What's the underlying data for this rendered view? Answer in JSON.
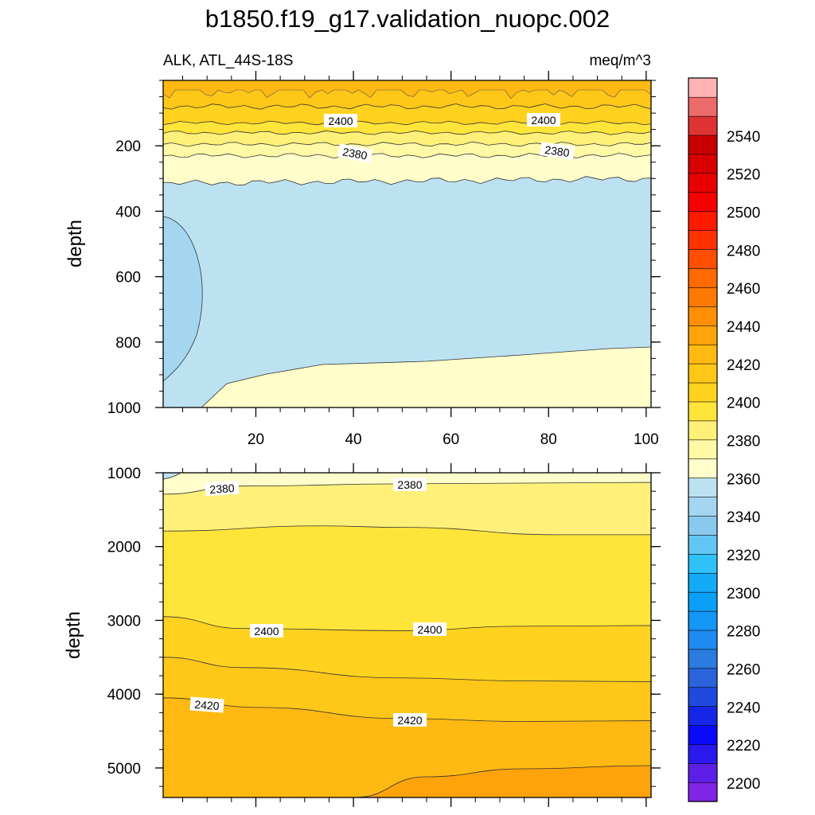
{
  "chart_data": {
    "type": "contour",
    "title": "b1850.f19_g17.validation_nuopc.002",
    "subtitle_left": "ALK, ATL_44S-18S",
    "subtitle_right": "meq/m^3",
    "x_ticks": [
      "20",
      "40",
      "60",
      "80",
      "100"
    ],
    "x_range": [
      1,
      101
    ],
    "colorbar": {
      "labels": [
        "2200",
        "2220",
        "2240",
        "2260",
        "2280",
        "2300",
        "2320",
        "2340",
        "2360",
        "2380",
        "2400",
        "2420",
        "2440",
        "2460",
        "2480",
        "2500",
        "2520",
        "2540"
      ],
      "colors": [
        "#8025e6",
        "#5d1fe8",
        "#2a19ee",
        "#0a0afa",
        "#1526e8",
        "#2049e0",
        "#2b63db",
        "#2c7ce0",
        "#1f8af0",
        "#1496f5",
        "#0aa0f7",
        "#13aaf8",
        "#2ec2f8",
        "#62c6f4",
        "#8ac9ee",
        "#a4d6f0",
        "#bce2f2",
        "#fffecb",
        "#fff9a6",
        "#fff07a",
        "#ffe53a",
        "#ffd21f",
        "#ffc718",
        "#ffb912",
        "#ffa30a",
        "#ff8f05",
        "#ff7a00",
        "#ff6a00",
        "#ff4e00",
        "#ff3300",
        "#ff1a00",
        "#f90000",
        "#e80000",
        "#d80000",
        "#c90000",
        "#dd3333",
        "#eb6b6b",
        "#ffb3b3"
      ]
    },
    "panels": [
      {
        "name": "upper",
        "ylabel": "depth",
        "y_range": [
          0,
          1000
        ],
        "y_ticks": [
          "200",
          "400",
          "600",
          "800",
          "1000"
        ],
        "contour_labels": [
          "2400",
          "2400",
          "2380",
          "2380"
        ]
      },
      {
        "name": "lower",
        "ylabel": "depth",
        "y_range": [
          1000,
          5400
        ],
        "y_ticks": [
          "1000",
          "2000",
          "3000",
          "4000",
          "5000"
        ],
        "contour_labels": [
          "2380",
          "2380",
          "2400",
          "2400",
          "2420",
          "2420"
        ]
      }
    ]
  }
}
